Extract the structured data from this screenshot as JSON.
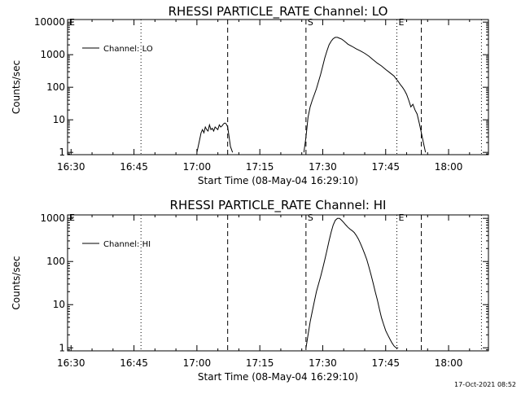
{
  "timestamp": "17-Oct-2021 08:52",
  "chart_data": [
    {
      "type": "line",
      "title": "RHESSI PARTICLE_RATE Channel: LO",
      "xlabel": "Start Time (08-May-04 16:29:10)",
      "ylabel": "Counts/sec",
      "y_scale": "log",
      "ylim": [
        0.85,
        12000
      ],
      "xlim": [
        "16:29:10",
        "18:09:30"
      ],
      "x_ticks": [
        "16:30",
        "16:45",
        "17:00",
        "17:15",
        "17:30",
        "17:45",
        "18:00"
      ],
      "y_ticks": [
        "1",
        "10",
        "100",
        "1000",
        "10000"
      ],
      "legend": {
        "position": "top-left",
        "entries": [
          "Channel: LO"
        ]
      },
      "markers": [
        {
          "label": "E",
          "time": "16:29:10",
          "style": "dotted"
        },
        {
          "label": "",
          "time": "16:46:40",
          "style": "dotted"
        },
        {
          "label": "",
          "time": "17:07:20",
          "style": "dashed"
        },
        {
          "label": "S",
          "time": "17:26:00",
          "style": "dashed"
        },
        {
          "label": "E",
          "time": "17:47:40",
          "style": "dotted"
        },
        {
          "label": "",
          "time": "17:53:30",
          "style": "dashed"
        },
        {
          "label": "",
          "time": "18:07:50",
          "style": "dotted"
        }
      ],
      "series": [
        {
          "name": "Channel: LO",
          "segments": [
            {
              "x": [
                "17:00:00",
                "17:00:30",
                "17:01:00",
                "17:01:20",
                "17:01:40",
                "17:02:00",
                "17:02:20",
                "17:02:40",
                "17:03:00",
                "17:03:20",
                "17:03:40",
                "17:04:00",
                "17:04:20",
                "17:04:40",
                "17:05:00",
                "17:05:20",
                "17:05:40",
                "17:06:00",
                "17:06:20",
                "17:06:40",
                "17:07:00",
                "17:07:20",
                "17:07:40",
                "17:08:00",
                "17:08:30"
              ],
              "y": [
                1,
                2,
                4,
                5,
                4,
                6,
                5,
                4.5,
                7,
                5,
                5.5,
                4.5,
                6,
                5.5,
                5,
                7,
                6,
                6.5,
                7.5,
                8,
                7.5,
                6,
                3,
                1.5,
                1
              ]
            },
            {
              "x": [
                "17:25:30",
                "17:26:00",
                "17:26:30",
                "17:27:00",
                "17:27:30",
                "17:28:00",
                "17:28:30",
                "17:29:00",
                "17:29:30",
                "17:30:00",
                "17:30:30",
                "17:31:00",
                "17:31:30",
                "17:32:00",
                "17:32:30",
                "17:33:00",
                "17:33:30",
                "17:34:00",
                "17:34:30",
                "17:35:00",
                "17:35:30",
                "17:36:00",
                "17:37:00",
                "17:38:00",
                "17:39:00",
                "17:40:00",
                "17:41:00",
                "17:42:00",
                "17:43:00",
                "17:44:00",
                "17:45:00",
                "17:46:00",
                "17:47:00",
                "17:47:30",
                "17:48:00",
                "17:48:30",
                "17:49:00",
                "17:49:30",
                "17:50:00",
                "17:50:30",
                "17:51:00",
                "17:51:30",
                "17:52:00",
                "17:52:30",
                "17:53:00",
                "17:53:30",
                "17:54:00",
                "17:54:30"
              ],
              "y": [
                1,
                3,
                12,
                25,
                40,
                60,
                90,
                150,
                250,
                450,
                800,
                1300,
                2000,
                2600,
                3100,
                3400,
                3400,
                3200,
                3000,
                2700,
                2400,
                2100,
                1800,
                1500,
                1300,
                1100,
                900,
                700,
                550,
                450,
                350,
                280,
                220,
                180,
                150,
                120,
                100,
                80,
                60,
                40,
                25,
                30,
                20,
                15,
                8,
                4,
                2,
                1
              ]
            }
          ]
        }
      ]
    },
    {
      "type": "line",
      "title": "RHESSI PARTICLE_RATE Channel: HI",
      "xlabel": "Start Time (08-May-04 16:29:10)",
      "ylabel": "Counts/sec",
      "y_scale": "log",
      "ylim": [
        0.85,
        1200
      ],
      "xlim": [
        "16:29:10",
        "18:09:30"
      ],
      "x_ticks": [
        "16:30",
        "16:45",
        "17:00",
        "17:15",
        "17:30",
        "17:45",
        "18:00"
      ],
      "y_ticks": [
        "1",
        "10",
        "100",
        "1000"
      ],
      "legend": {
        "position": "top-left",
        "entries": [
          "Channel: HI"
        ]
      },
      "markers": [
        {
          "label": "E",
          "time": "16:29:10",
          "style": "dotted"
        },
        {
          "label": "",
          "time": "16:46:40",
          "style": "dotted"
        },
        {
          "label": "",
          "time": "17:07:20",
          "style": "dashed"
        },
        {
          "label": "S",
          "time": "17:26:00",
          "style": "dashed"
        },
        {
          "label": "E",
          "time": "17:47:40",
          "style": "dotted"
        },
        {
          "label": "",
          "time": "17:53:30",
          "style": "dashed"
        },
        {
          "label": "",
          "time": "18:07:50",
          "style": "dotted"
        }
      ],
      "series": [
        {
          "name": "Channel: HI",
          "segments": [
            {
              "x": [
                "17:26:00",
                "17:26:30",
                "17:27:00",
                "17:27:30",
                "17:28:00",
                "17:28:30",
                "17:29:00",
                "17:29:30",
                "17:30:00",
                "17:30:30",
                "17:31:00",
                "17:31:30",
                "17:32:00",
                "17:32:30",
                "17:33:00",
                "17:33:30",
                "17:34:00",
                "17:34:30",
                "17:35:00",
                "17:35:30",
                "17:36:00",
                "17:36:30",
                "17:37:00",
                "17:37:30",
                "17:38:00",
                "17:38:30",
                "17:39:00",
                "17:39:30",
                "17:40:00",
                "17:40:30",
                "17:41:00",
                "17:41:30",
                "17:42:00",
                "17:42:30",
                "17:43:00",
                "17:43:30",
                "17:44:00",
                "17:44:30",
                "17:45:00",
                "17:45:30",
                "17:46:00",
                "17:46:30",
                "17:47:00",
                "17:47:30",
                "17:48:00"
              ],
              "y": [
                1,
                2,
                4,
                7,
                12,
                20,
                30,
                45,
                70,
                110,
                180,
                300,
                480,
                700,
                900,
                1000,
                1000,
                900,
                800,
                700,
                620,
                560,
                520,
                470,
                400,
                330,
                260,
                200,
                150,
                110,
                75,
                50,
                32,
                20,
                13,
                8,
                5,
                3.5,
                2.5,
                2,
                1.6,
                1.3,
                1.1,
                1,
                1
              ]
            }
          ]
        }
      ]
    }
  ]
}
